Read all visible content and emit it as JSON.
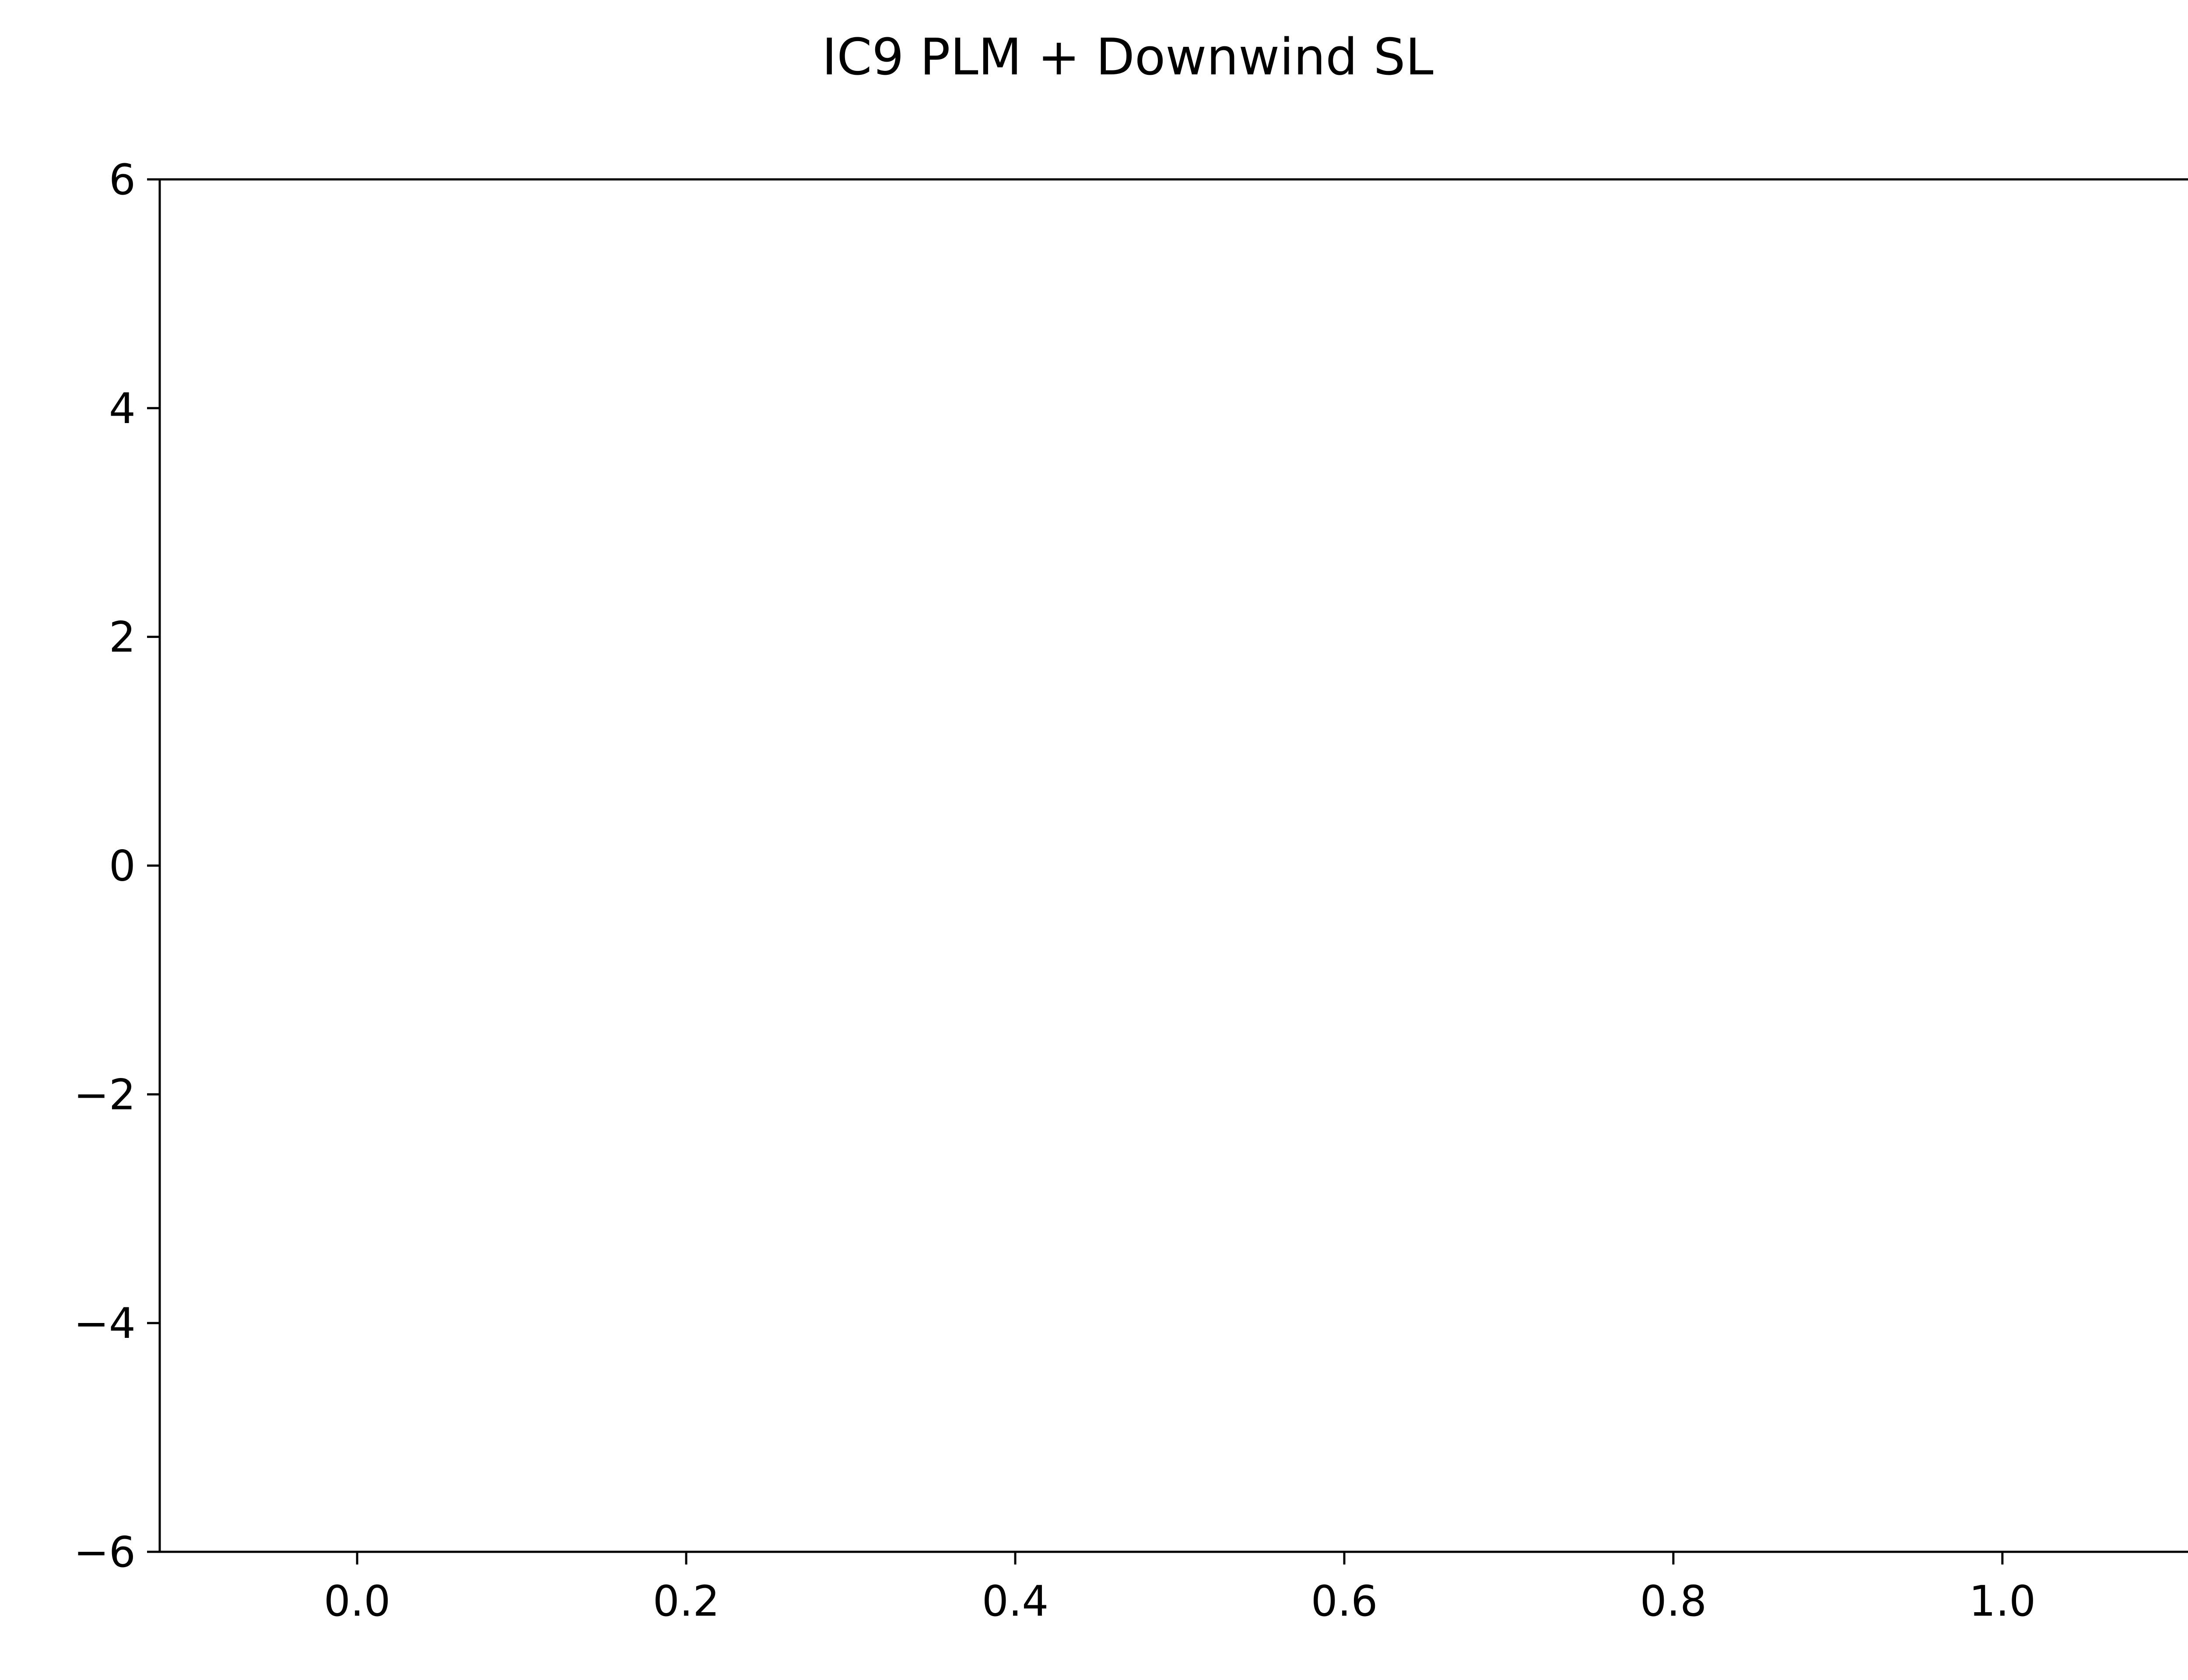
{
  "chart_data": {
    "type": "line",
    "title": "IC9 PLM + Downwind SL",
    "xlabel": "",
    "ylabel": "",
    "xlim": [
      -0.12,
      1.12
    ],
    "ylim": [
      -6,
      6
    ],
    "xticks": [
      0.0,
      0.2,
      0.4,
      0.6,
      0.8,
      1.0
    ],
    "xtick_labels": [
      "0.0",
      "0.2",
      "0.4",
      "0.6",
      "0.8",
      "1.0"
    ],
    "yticks": [
      -6,
      -4,
      -2,
      0,
      2,
      4,
      6
    ],
    "ytick_labels": [
      "−6",
      "−4",
      "−2",
      "0",
      "2",
      "4",
      "6"
    ],
    "series": [],
    "grid": false,
    "legend": "none"
  },
  "colors": {
    "background": "#ffffff",
    "axes": "#000000",
    "text": "#000000"
  }
}
